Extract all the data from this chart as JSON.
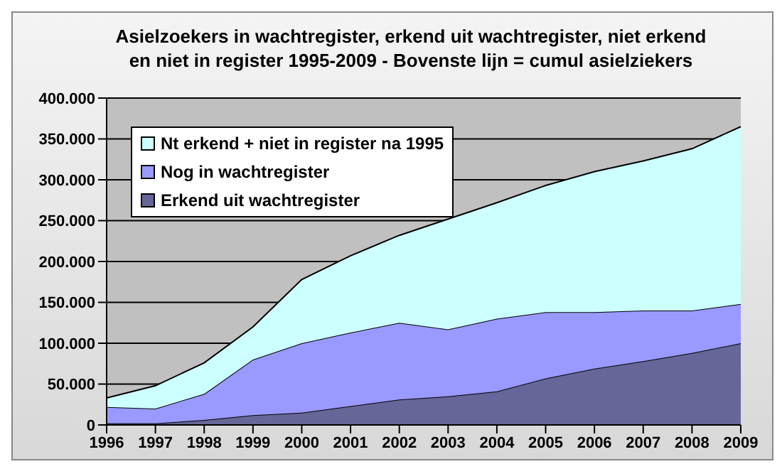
{
  "chart_data": {
    "type": "area",
    "title": "Asielzoekers in wachtregister, erkend uit wachtregister, niet erkend en niet in register 1995-2009 - Bovenste lijn  = cumul asielziekers",
    "categories": [
      "1996",
      "1997",
      "1998",
      "1999",
      "2000",
      "2001",
      "2002",
      "2003",
      "2004",
      "2005",
      "2006",
      "2007",
      "2008",
      "2009"
    ],
    "series": [
      {
        "name": "Erkend uit wachtregister",
        "color": "#666699",
        "values": [
          2000,
          2000,
          6000,
          12000,
          15000,
          23000,
          31000,
          35000,
          41000,
          57000,
          69000,
          78000,
          88000,
          100000
        ]
      },
      {
        "name": "Nog in wachtregister",
        "color": "#9999ff",
        "values": [
          20000,
          18000,
          32000,
          68000,
          85000,
          90000,
          94000,
          82000,
          89000,
          81000,
          69000,
          62000,
          52000,
          48000
        ]
      },
      {
        "name": "Nt erkend + niet in register na 1995",
        "color": "#ccffff",
        "values": [
          11000,
          28000,
          38000,
          40000,
          78000,
          94000,
          107000,
          135000,
          142000,
          155000,
          172000,
          183000,
          198000,
          217000
        ]
      }
    ],
    "stacked": true,
    "ylim": [
      0,
      400000
    ],
    "yticks": [
      0,
      {
        "value": 50000,
        "label": "50.000"
      },
      {
        "value": 100000,
        "label": "100.000"
      },
      {
        "value": 150000,
        "label": "150.000"
      },
      {
        "value": 200000,
        "label": "200.000"
      },
      {
        "value": 250000,
        "label": "250.000"
      },
      {
        "value": 300000,
        "label": "300.000"
      },
      {
        "value": 350000,
        "label": "350.000"
      },
      {
        "value": 400000,
        "label": "400.000"
      }
    ],
    "grid": "y",
    "legend": "top left"
  }
}
